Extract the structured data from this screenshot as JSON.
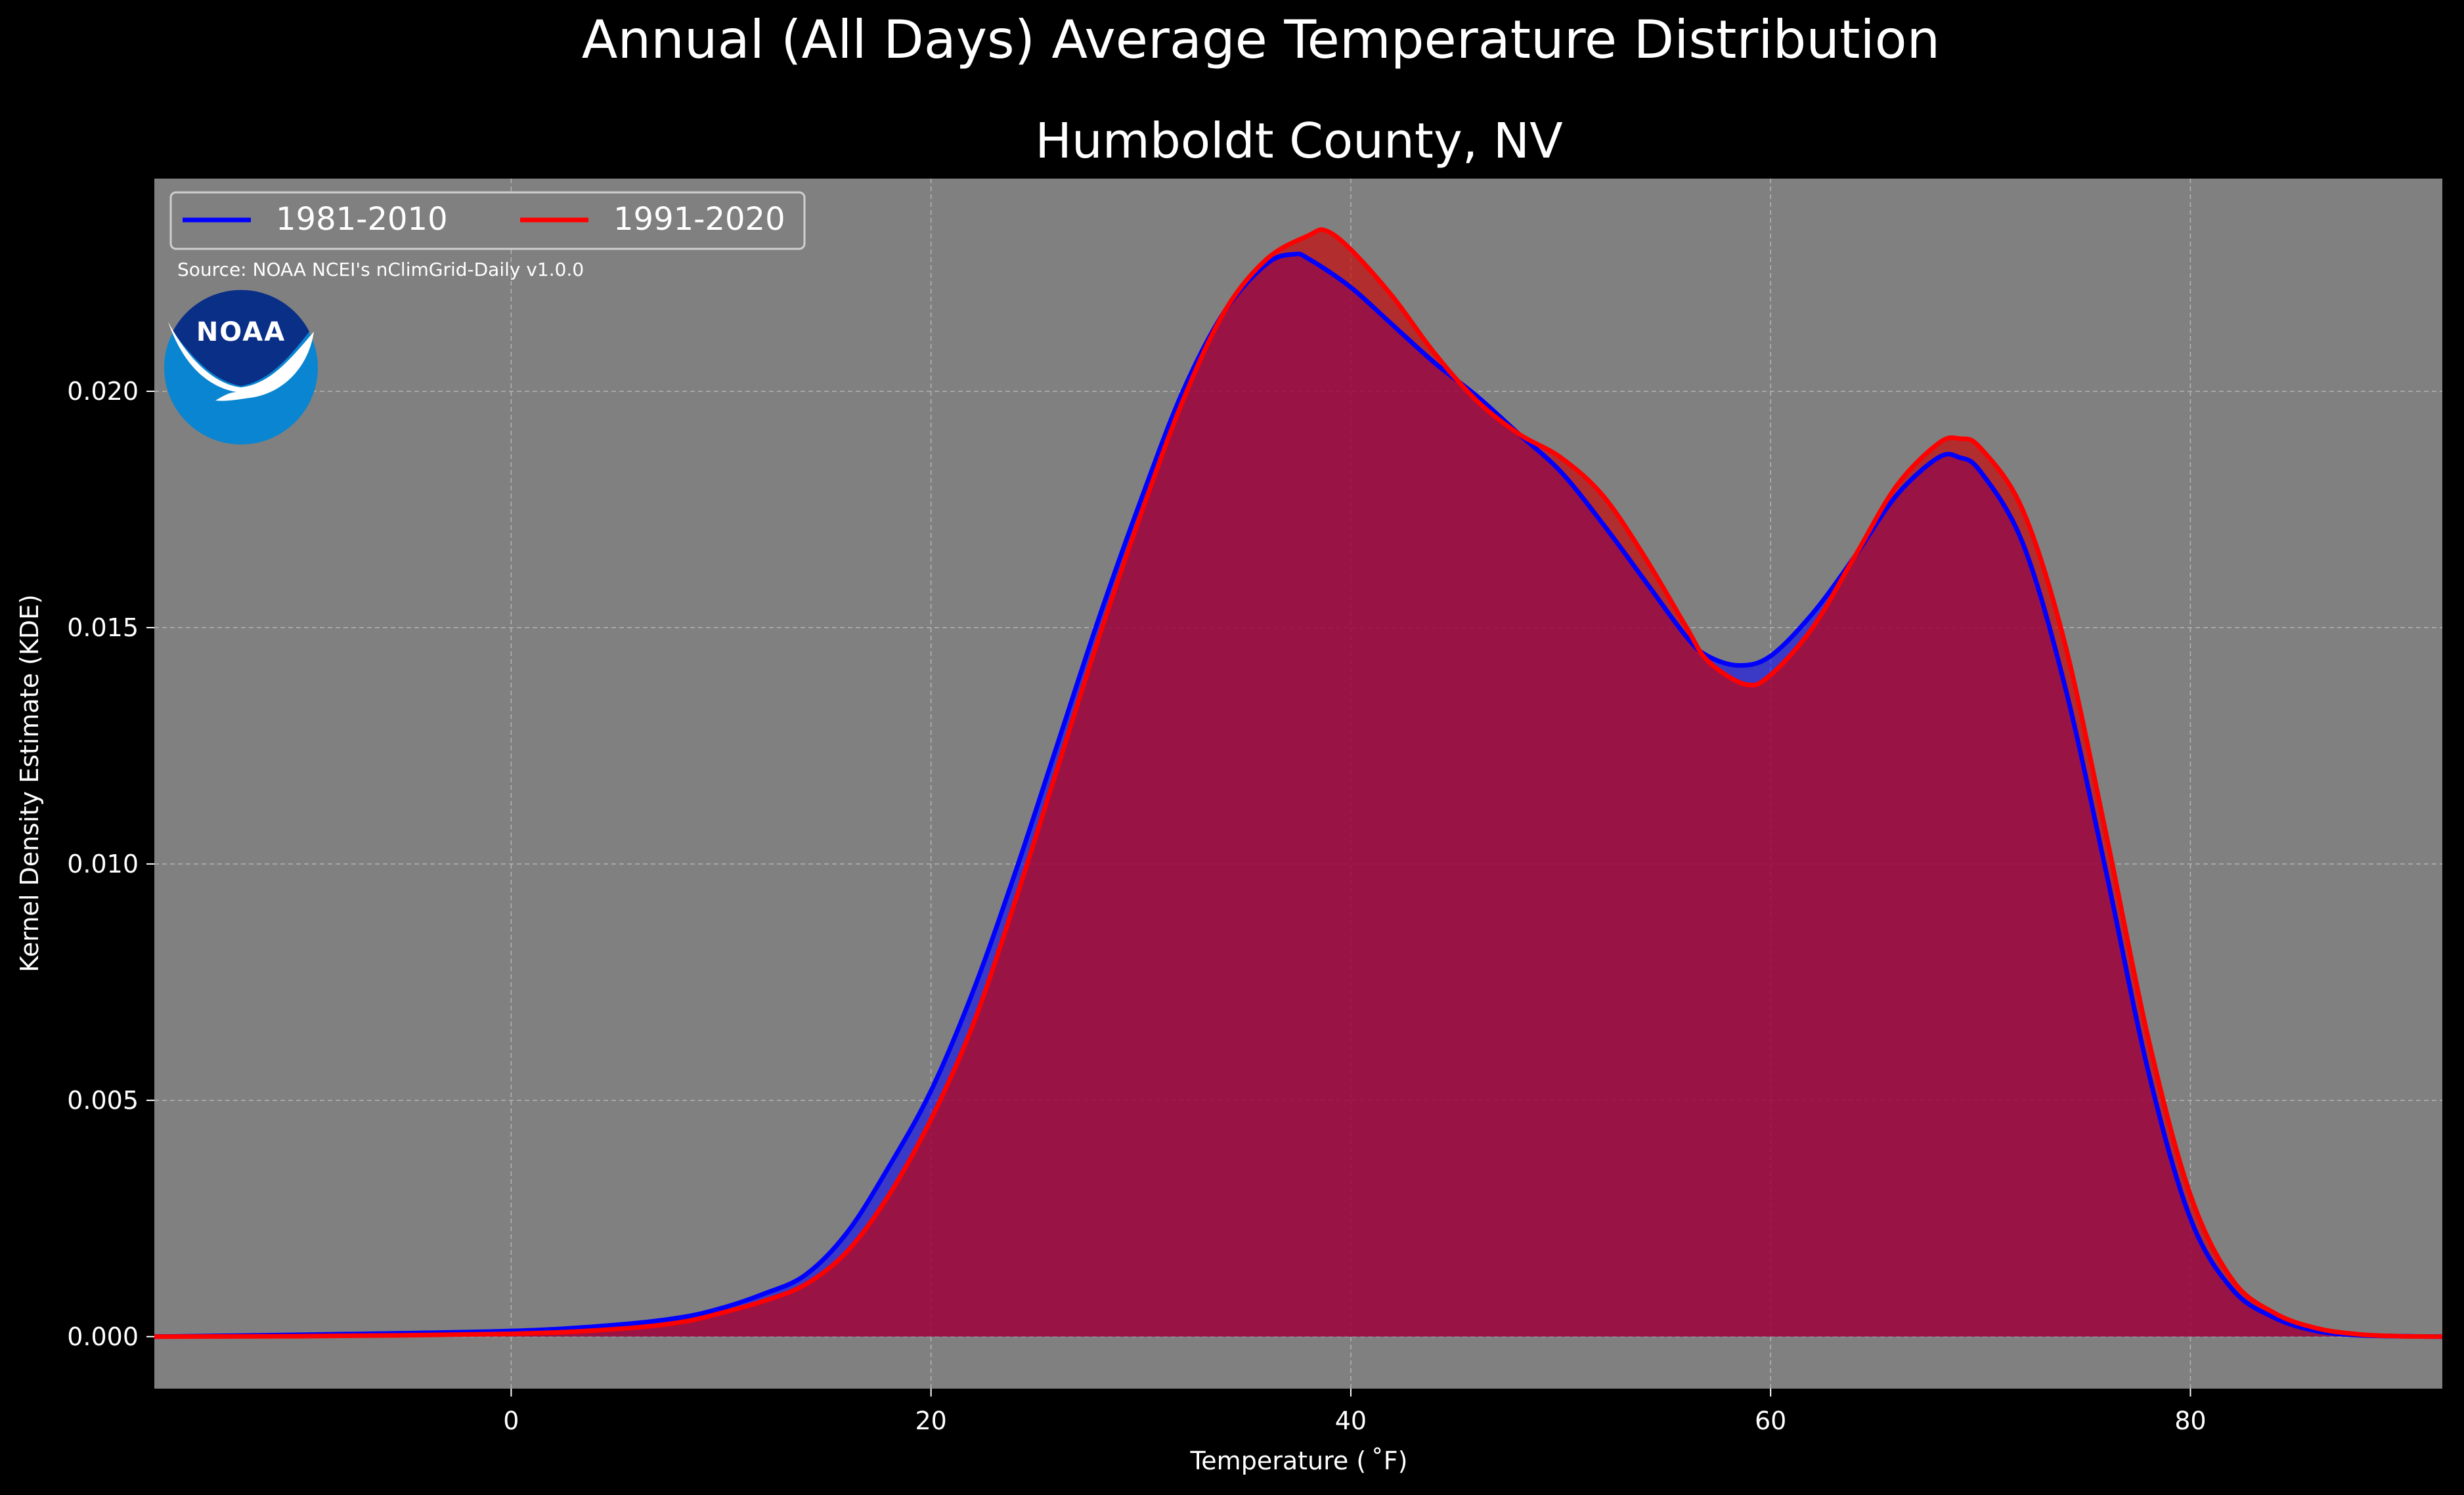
{
  "chart_data": {
    "type": "area",
    "suptitle": "Annual (All Days) Average Temperature Distribution",
    "title": "Humboldt County, NV",
    "xlabel": "Temperature ($^\\circ$F)",
    "xlabel_display": "Temperature ( ˚F)",
    "ylabel": "Kernel Density Estimate (KDE)",
    "xlim": [
      -17,
      92
    ],
    "ylim": [
      -0.0011,
      0.0245
    ],
    "xticks": [
      0,
      20,
      40,
      60,
      80
    ],
    "xtick_labels": [
      "0",
      "20",
      "40",
      "60",
      "80"
    ],
    "yticks": [
      0.0,
      0.005,
      0.01,
      0.015,
      0.02
    ],
    "ytick_labels": [
      "0.000",
      "0.005",
      "0.010",
      "0.015",
      "0.020"
    ],
    "grid": true,
    "legend_position": "top-left",
    "source_note": "Source: NOAA NCEI's nClimGrid-Daily v1.0.0",
    "logo_text": "NOAA",
    "colors": {
      "background": "#000000",
      "plot_background": "#808080",
      "text": "#ffffff",
      "grid": "#b3b3b3",
      "noaa_dark_blue": "#0a2f87",
      "noaa_light_blue": "#0a85d1"
    },
    "series": [
      {
        "name": "1981-2010",
        "color": "#0000ff",
        "fill": "#0000ff",
        "x": [
          -17,
          -10,
          0,
          5,
          8,
          10,
          12,
          14,
          16,
          18,
          20,
          22,
          24,
          26,
          28,
          30,
          32,
          34,
          36,
          37.3,
          38,
          40,
          42,
          44,
          46,
          48,
          50,
          52,
          54,
          56,
          57,
          58.5,
          60,
          62,
          64,
          66,
          68,
          69,
          70,
          72,
          74,
          76,
          78,
          80,
          82,
          84,
          86,
          88,
          90,
          92
        ],
        "y": [
          0.0,
          4e-05,
          0.00012,
          0.00025,
          0.0004,
          0.0006,
          0.0009,
          0.0013,
          0.0022,
          0.0036,
          0.0052,
          0.0073,
          0.0098,
          0.0125,
          0.0152,
          0.0177,
          0.02,
          0.0217,
          0.0227,
          0.0229,
          0.0228,
          0.0222,
          0.0214,
          0.0206,
          0.0199,
          0.0191,
          0.0183,
          0.0172,
          0.016,
          0.0148,
          0.0144,
          0.0142,
          0.0144,
          0.0153,
          0.0165,
          0.0178,
          0.0186,
          0.0186,
          0.0183,
          0.0168,
          0.0138,
          0.0098,
          0.0056,
          0.0025,
          0.001,
          0.0004,
          0.00012,
          3e-05,
          1e-05,
          0.0
        ]
      },
      {
        "name": "1991-2020",
        "color": "#ff0000",
        "fill": "#cc0000",
        "x": [
          -17,
          -10,
          0,
          5,
          8,
          10,
          12,
          14,
          16,
          18,
          20,
          22,
          24,
          26,
          28,
          30,
          32,
          34,
          36,
          38,
          38.8,
          40,
          42,
          44,
          46,
          48,
          50,
          52,
          54,
          56,
          57,
          58.8,
          60,
          62,
          64,
          66,
          68,
          69,
          70,
          72,
          74,
          76,
          78,
          80,
          82,
          84,
          86,
          88,
          90,
          92
        ],
        "y": [
          0.0,
          1e-05,
          6e-05,
          0.00016,
          0.0003,
          0.0005,
          0.00075,
          0.0011,
          0.0018,
          0.003,
          0.0046,
          0.0066,
          0.0092,
          0.012,
          0.0148,
          0.0174,
          0.0198,
          0.0217,
          0.0228,
          0.0233,
          0.0234,
          0.023,
          0.022,
          0.0208,
          0.0198,
          0.0191,
          0.0186,
          0.0178,
          0.0165,
          0.015,
          0.0143,
          0.0138,
          0.014,
          0.015,
          0.0165,
          0.018,
          0.0189,
          0.019,
          0.0188,
          0.0175,
          0.0147,
          0.0106,
          0.0063,
          0.003,
          0.0012,
          0.0005,
          0.00018,
          5e-05,
          1e-05,
          0.0
        ]
      }
    ]
  }
}
